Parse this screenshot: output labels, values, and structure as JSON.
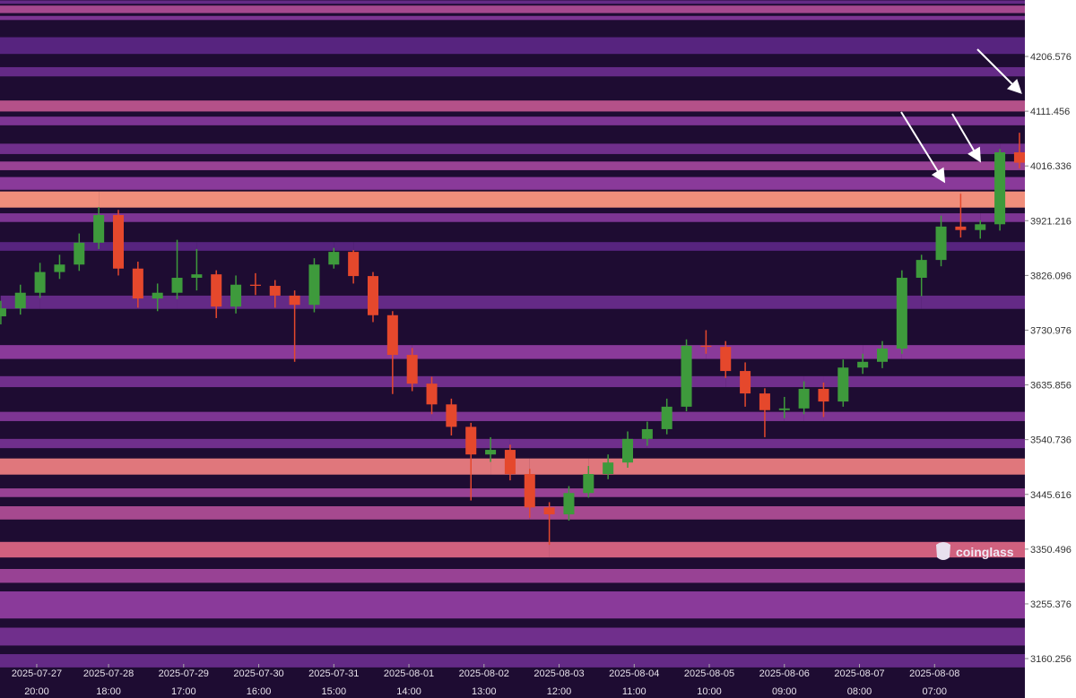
{
  "chart_data": {
    "type": "candlestick",
    "watermark": "coinglass",
    "x": [
      "2025-07-27 09:00",
      "2025-07-27 15:00",
      "2025-07-27 21:00",
      "2025-07-28 03:00",
      "2025-07-28 09:00",
      "2025-07-28 15:00",
      "2025-07-28 21:00",
      "2025-07-29 03:00",
      "2025-07-29 09:00",
      "2025-07-29 15:00",
      "2025-07-29 21:00",
      "2025-07-30 03:00",
      "2025-07-30 09:00",
      "2025-07-30 15:00",
      "2025-07-30 21:00",
      "2025-07-31 03:00",
      "2025-07-31 09:00",
      "2025-07-31 15:00",
      "2025-07-31 21:00",
      "2025-08-01 03:00",
      "2025-08-01 09:00",
      "2025-08-01 15:00",
      "2025-08-01 21:00",
      "2025-08-02 03:00",
      "2025-08-02 09:00",
      "2025-08-02 15:00",
      "2025-08-02 21:00",
      "2025-08-03 03:00",
      "2025-08-03 09:00",
      "2025-08-03 15:00",
      "2025-08-03 21:00",
      "2025-08-04 03:00",
      "2025-08-04 09:00",
      "2025-08-04 15:00",
      "2025-08-04 21:00",
      "2025-08-05 03:00",
      "2025-08-05 09:00",
      "2025-08-05 15:00",
      "2025-08-05 21:00",
      "2025-08-06 03:00",
      "2025-08-06 09:00",
      "2025-08-06 15:00",
      "2025-08-06 21:00",
      "2025-08-07 03:00",
      "2025-08-07 09:00",
      "2025-08-07 15:00",
      "2025-08-07 21:00",
      "2025-08-08 03:00",
      "2025-08-08 09:00",
      "2025-08-08 15:00",
      "2025-08-08 21:00",
      "2025-08-09 03:00",
      "2025-08-09 09:00"
    ],
    "open": [
      3755,
      3769,
      3796,
      3832,
      3845,
      3883,
      3931,
      3838,
      3786,
      3796,
      3822,
      3828,
      3772,
      3810,
      3808,
      3791,
      3775,
      3845,
      3867,
      3825,
      3757,
      3688,
      3638,
      3602,
      3563,
      3515,
      3523,
      3481,
      3423,
      3411,
      3448,
      3481,
      3501,
      3542,
      3559,
      3598,
      3704,
      3702,
      3660,
      3621,
      3592,
      3595,
      3629,
      3607,
      3666,
      3676,
      3699,
      3822,
      3853,
      3911,
      3905,
      3915,
      4040
    ],
    "high": [
      3782,
      3810,
      3848,
      3862,
      3899,
      3945,
      3940,
      3850,
      3812,
      3888,
      3872,
      3835,
      3826,
      3830,
      3818,
      3800,
      3856,
      3874,
      3870,
      3832,
      3764,
      3700,
      3650,
      3612,
      3570,
      3545,
      3532,
      3490,
      3432,
      3460,
      3495,
      3515,
      3555,
      3572,
      3612,
      3715,
      3731,
      3712,
      3675,
      3630,
      3615,
      3642,
      3640,
      3680,
      3690,
      3712,
      3835,
      3862,
      3930,
      3968,
      3922,
      4046,
      4074
    ],
    "low": [
      3741,
      3758,
      3787,
      3820,
      3834,
      3872,
      3826,
      3770,
      3764,
      3785,
      3800,
      3752,
      3760,
      3792,
      3770,
      3676,
      3762,
      3838,
      3812,
      3745,
      3620,
      3625,
      3585,
      3548,
      3435,
      3502,
      3470,
      3405,
      3358,
      3400,
      3440,
      3472,
      3492,
      3530,
      3550,
      3590,
      3690,
      3648,
      3598,
      3545,
      3578,
      3585,
      3580,
      3598,
      3655,
      3665,
      3690,
      3790,
      3842,
      3892,
      3890,
      3904,
      4012
    ],
    "close": [
      3769,
      3796,
      3832,
      3845,
      3883,
      3931,
      3838,
      3786,
      3796,
      3822,
      3828,
      3772,
      3810,
      3808,
      3791,
      3775,
      3845,
      3867,
      3825,
      3757,
      3688,
      3638,
      3602,
      3563,
      3515,
      3523,
      3481,
      3423,
      3411,
      3448,
      3481,
      3501,
      3542,
      3559,
      3598,
      3704,
      3702,
      3660,
      3621,
      3592,
      3595,
      3629,
      3607,
      3666,
      3676,
      3699,
      3822,
      3853,
      3911,
      3905,
      3915,
      4040,
      4022
    ],
    "up_color": "#3e9a3c",
    "down_color": "#e5482c",
    "background": "#1e0c32",
    "colorscale": [
      "#241038",
      "#4a1f78",
      "#8a3a9a",
      "#d0607e",
      "#f89a7a"
    ],
    "heatmap": [
      {
        "low": 4298,
        "high": 4304,
        "intensity": 0.35
      },
      {
        "low": 4282,
        "high": 4295,
        "intensity": 0.6
      },
      {
        "low": 4270,
        "high": 4277,
        "intensity": 0.45
      },
      {
        "low": 4211,
        "high": 4240,
        "intensity": 0.3
      },
      {
        "low": 4172,
        "high": 4188,
        "intensity": 0.35
      },
      {
        "low": 4111,
        "high": 4130,
        "intensity": 0.65
      },
      {
        "low": 4087,
        "high": 4102,
        "intensity": 0.45
      },
      {
        "low": 4037,
        "high": 4055,
        "intensity": 0.4
      },
      {
        "low": 4009,
        "high": 4024,
        "intensity": 0.55
      },
      {
        "low": 3975,
        "high": 3997,
        "intensity": 0.5
      },
      {
        "low": 3944,
        "high": 3972,
        "intensity": 0.95
      },
      {
        "low": 3919,
        "high": 3934,
        "intensity": 0.45
      },
      {
        "low": 3869,
        "high": 3884,
        "intensity": 0.3
      },
      {
        "low": 3768,
        "high": 3791,
        "intensity": 0.35
      },
      {
        "low": 3681,
        "high": 3705,
        "intensity": 0.5
      },
      {
        "low": 3632,
        "high": 3651,
        "intensity": 0.4
      },
      {
        "low": 3573,
        "high": 3589,
        "intensity": 0.45
      },
      {
        "low": 3526,
        "high": 3542,
        "intensity": 0.4
      },
      {
        "low": 3480,
        "high": 3508,
        "intensity": 0.85
      },
      {
        "low": 3441,
        "high": 3456,
        "intensity": 0.55
      },
      {
        "low": 3402,
        "high": 3425,
        "intensity": 0.6
      },
      {
        "low": 3336,
        "high": 3363,
        "intensity": 0.75
      },
      {
        "low": 3292,
        "high": 3316,
        "intensity": 0.55
      },
      {
        "low": 3230,
        "high": 3277,
        "intensity": 0.5
      },
      {
        "low": 3183,
        "high": 3214,
        "intensity": 0.4
      },
      {
        "low": 3145,
        "high": 3168,
        "intensity": 0.35
      }
    ],
    "xlim": [
      "2025-07-27 08:45",
      "2025-08-09 10:40"
    ],
    "xticks": [
      "2025-07-27 20:00",
      "2025-07-28 18:00",
      "2025-07-29 17:00",
      "2025-07-30 16:00",
      "2025-07-31 15:00",
      "2025-08-01 14:00",
      "2025-08-02 13:00",
      "2025-08-03 12:00",
      "2025-08-04 11:00",
      "2025-08-05 10:00",
      "2025-08-06 09:00",
      "2025-08-07 08:00",
      "2025-08-08 07:00"
    ],
    "ylim": [
      3091.8,
      4304.7
    ],
    "yticks": [
      3160.256,
      3255.376,
      3350.496,
      3445.616,
      3540.736,
      3635.856,
      3730.976,
      3826.096,
      3921.216,
      4016.336,
      4111.456,
      4206.576
    ]
  }
}
